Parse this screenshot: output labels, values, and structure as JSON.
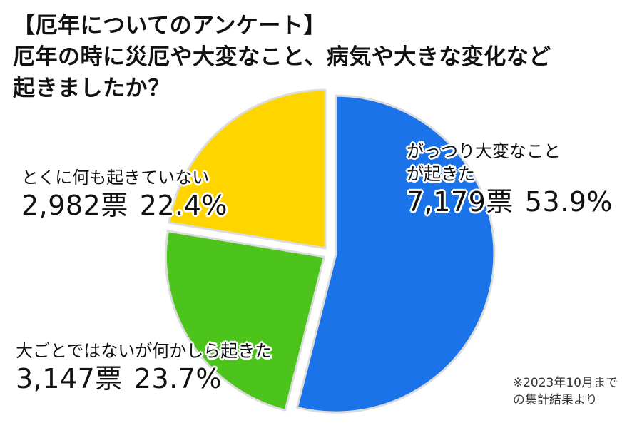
{
  "title": {
    "line1": "【厄年についてのアンケート】",
    "line2": "厄年の時に災厄や大変なこと、病気や大きな変化など",
    "line3": "起きましたか？"
  },
  "chart_data": {
    "type": "pie",
    "title": "【厄年についてのアンケート】厄年の時に災厄や大変なこと、病気や大きな変化など起きましたか？",
    "unit": "票",
    "slices": [
      {
        "label_line1": "がっつり大変なこと",
        "label_line2": "が起きた",
        "votes": 7179,
        "votes_text": "7,179票",
        "percent": 53.9,
        "percent_text": "53.9%",
        "color": "#1a73e8"
      },
      {
        "label_line1": "大ごとではないが何かしら起きた",
        "label_line2": "",
        "votes": 3147,
        "votes_text": "3,147票",
        "percent": 23.7,
        "percent_text": "23.7%",
        "color": "#4cc41b"
      },
      {
        "label_line1": "とくに何も起きていない",
        "label_line2": "",
        "votes": 2982,
        "votes_text": "2,982票",
        "percent": 22.4,
        "percent_text": "22.4%",
        "color": "#ffd500"
      }
    ]
  },
  "note": {
    "line1": "※2023年10月まで",
    "line2": "の集計結果より"
  }
}
